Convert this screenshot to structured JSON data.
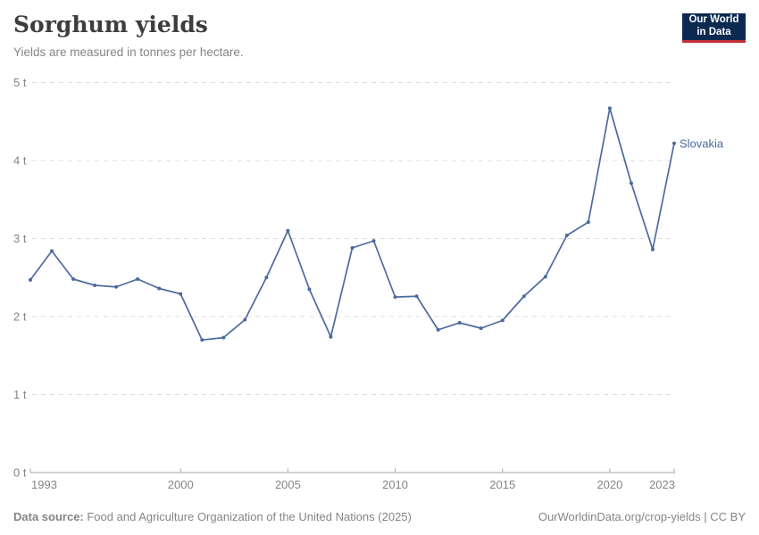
{
  "header": {
    "title": "Sorghum yields",
    "subtitle": "Yields are measured in tonnes per hectare."
  },
  "logo": {
    "line1": "Our World",
    "line2": "in Data"
  },
  "footer": {
    "source_label": "Data source:",
    "source_text": " Food and Agriculture Organization of the United Nations (2025)",
    "credit": "OurWorldinData.org/crop-yields | CC BY"
  },
  "colors": {
    "series": "#4c6a9e",
    "grid": "#dcdcdc",
    "axis": "#a7a7a7",
    "tick_text": "#858585",
    "logo_bg": "#0c2a50",
    "logo_red": "#c5313b"
  },
  "chart_data": {
    "type": "line",
    "title": "Sorghum yields",
    "subtitle": "Yields are measured in tonnes per hectare.",
    "unit": "tonnes per hectare",
    "grid": "horizontal-dashed",
    "legend_position": "end-of-line-label",
    "end_label": "Slovakia",
    "xlim": [
      1993,
      2023
    ],
    "ylim": [
      0,
      5
    ],
    "xticks": [
      {
        "value": 1993,
        "label": "1993"
      },
      {
        "value": 2000,
        "label": "2000"
      },
      {
        "value": 2005,
        "label": "2005"
      },
      {
        "value": 2010,
        "label": "2010"
      },
      {
        "value": 2015,
        "label": "2015"
      },
      {
        "value": 2020,
        "label": "2020"
      },
      {
        "value": 2023,
        "label": "2023"
      }
    ],
    "yticks": [
      {
        "value": 0,
        "label": "0 t"
      },
      {
        "value": 1,
        "label": "1 t"
      },
      {
        "value": 2,
        "label": "2 t"
      },
      {
        "value": 3,
        "label": "3 t"
      },
      {
        "value": 4,
        "label": "4 t"
      },
      {
        "value": 5,
        "label": "5 t"
      }
    ],
    "series": [
      {
        "name": "Slovakia",
        "color": "#4c6a9e",
        "x": [
          1993,
          1994,
          1995,
          1996,
          1997,
          1998,
          1999,
          2000,
          2001,
          2002,
          2003,
          2004,
          2005,
          2006,
          2007,
          2008,
          2009,
          2010,
          2011,
          2012,
          2013,
          2014,
          2015,
          2016,
          2017,
          2018,
          2019,
          2020,
          2021,
          2022,
          2023
        ],
        "values": [
          2.47,
          2.84,
          2.48,
          2.4,
          2.38,
          2.48,
          2.36,
          2.29,
          1.7,
          1.73,
          1.96,
          2.5,
          3.1,
          2.35,
          1.74,
          2.88,
          2.97,
          2.25,
          2.26,
          1.83,
          1.92,
          1.85,
          1.95,
          2.26,
          2.51,
          3.04,
          3.21,
          4.67,
          3.71,
          2.86,
          4.22
        ]
      }
    ]
  }
}
